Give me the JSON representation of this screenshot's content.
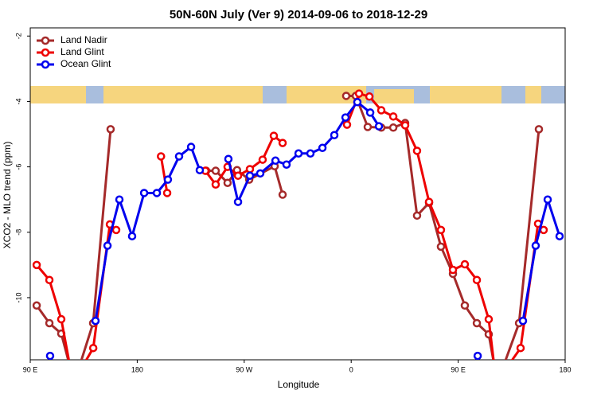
{
  "chart_data": {
    "type": "line",
    "title": "50N-60N July (Ver 9)   2014-09-06 to 2018-12-29",
    "x_label": "Longitude",
    "y_label": "XCO2 - MLO trend (ppm)",
    "xlim": [
      -270,
      180
    ],
    "ylim": [
      -11.9,
      -1.75
    ],
    "xticks": [
      {
        "value": -270,
        "label": "90 E"
      },
      {
        "value": -180,
        "label": "180"
      },
      {
        "value": -90,
        "label": "90 W"
      },
      0,
      {
        "value": 90,
        "label": "90 E"
      },
      180
    ],
    "yticks": [
      -2,
      -4,
      -6,
      -8,
      -10
    ],
    "legend": "top-left",
    "series": [
      {
        "name": "Land Nadir",
        "color": "#a52a2a",
        "x": [
          -264.6,
          -253.9,
          -243.9,
          -233,
          -217.1,
          -202.4,
          null,
          -122,
          -114,
          -104,
          -96,
          -85.8,
          -64.4,
          -57.7,
          null,
          -4.2,
          3.9,
          13.9,
          25.3,
          35.4,
          45.4,
          55.4,
          65.5,
          75.5,
          85.6,
          95.6,
          105.7,
          115.7,
          123,
          141.2,
          157.9
        ],
        "values": [
          -10.24,
          -10.78,
          -11.1,
          -12.6,
          -10.78,
          -4.85,
          null,
          -6.12,
          -6.12,
          -6.49,
          -6.1,
          -6.39,
          -5.98,
          -6.85,
          null,
          -3.83,
          -3.83,
          -4.78,
          -4.8,
          -4.8,
          -4.66,
          -7.49,
          -7.1,
          -8.44,
          -9.27,
          -10.24,
          -10.78,
          -11.12,
          -12.6,
          -10.78,
          -4.85
        ]
      },
      {
        "name": "Land Glint",
        "color": "#ee0000",
        "x": [
          -264.6,
          -253.9,
          -243.9,
          -234,
          -217,
          -203,
          -197.7,
          null,
          -160,
          -154.8,
          null,
          -122.7,
          -114,
          -104,
          -95.2,
          -85.2,
          -74.5,
          -65.1,
          -57.7,
          null,
          -3.5,
          6.6,
          15.3,
          25.3,
          35.4,
          45.4,
          55.4,
          65.5,
          75.5,
          85.6,
          95.6,
          105.7,
          115.7,
          122,
          142.5,
          157.2,
          161.9
        ],
        "values": [
          -9.0,
          -9.46,
          -10.66,
          -12.6,
          -11.54,
          -7.76,
          -7.93,
          null,
          -5.68,
          -6.8,
          null,
          -6.12,
          -6.54,
          -6.0,
          -6.27,
          -6.07,
          -5.78,
          -5.05,
          -5.27,
          null,
          -4.71,
          -3.76,
          -3.85,
          -4.27,
          -4.46,
          -4.73,
          -5.51,
          -7.07,
          -7.93,
          -9.15,
          -8.98,
          -9.46,
          -10.66,
          -12.6,
          -11.54,
          -7.74,
          -7.93
        ]
      },
      {
        "name": "Ocean Glint",
        "color": "#0000ee",
        "x": [
          -253.3,
          null,
          -215.1,
          -205,
          -195,
          -184.3,
          -174.2,
          -163.5,
          -154.2,
          -144.8,
          -134.7,
          -127.4,
          null,
          -103.3,
          -95.2,
          -85.2,
          -76.5,
          -63.7,
          -54.4,
          -44.3,
          -34.3,
          -24.2,
          -14.2,
          -4.8,
          5.2,
          16,
          23.3,
          null,
          106.4,
          null,
          144.5,
          155.2,
          165.3,
          175.3
        ],
        "values": [
          -11.78,
          null,
          -10.71,
          -8.41,
          -7.0,
          -8.12,
          -6.8,
          -6.8,
          -6.39,
          -5.68,
          -5.39,
          -6.1,
          null,
          -5.76,
          -7.07,
          -6.27,
          -6.2,
          -5.81,
          -5.93,
          -5.59,
          -5.59,
          -5.42,
          -5.03,
          -4.49,
          -4.02,
          -4.34,
          -4.76,
          null,
          -11.78,
          null,
          -10.71,
          -8.41,
          -7.0,
          -8.12
        ]
      }
    ]
  }
}
